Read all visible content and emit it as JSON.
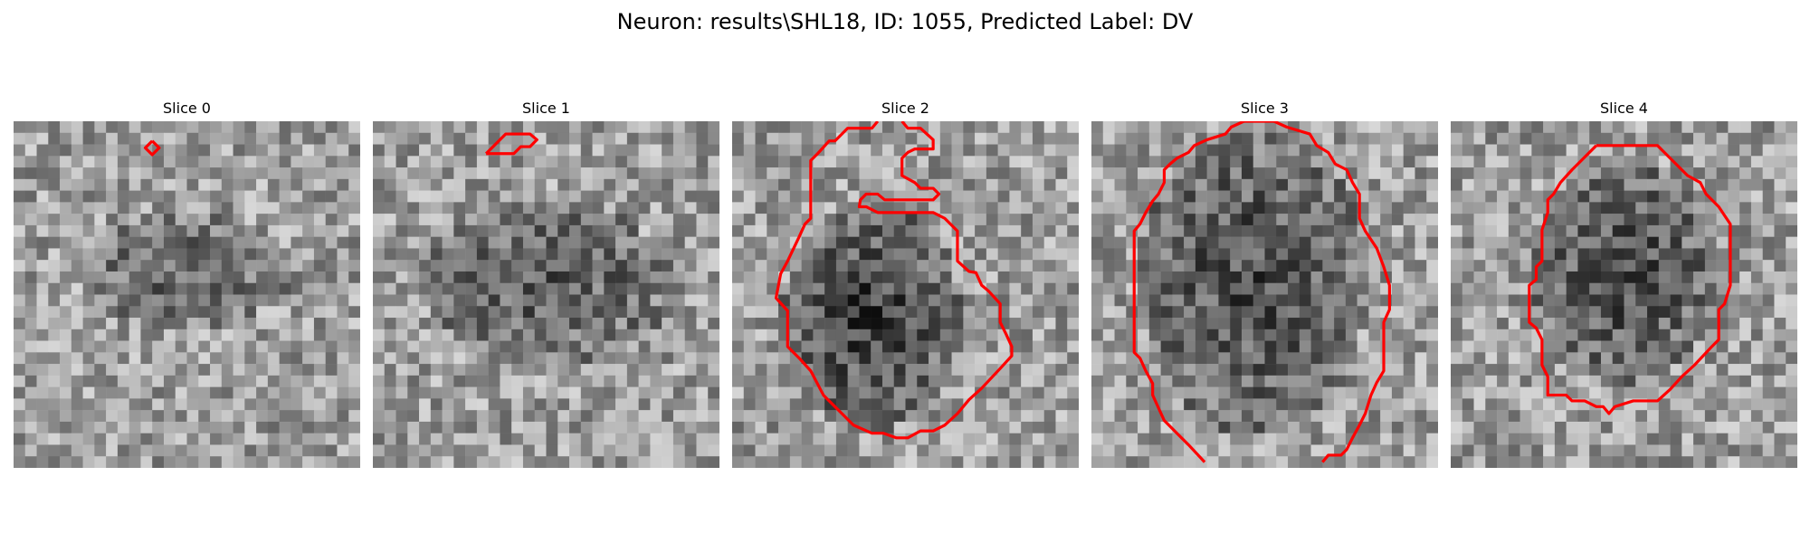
{
  "figure": {
    "title": "Neuron: results\\SHL18, ID: 1055, Predicted Label: DV"
  },
  "panels": [
    {
      "title": "Slice 0"
    },
    {
      "title": "Slice 1"
    },
    {
      "title": "Slice 2"
    },
    {
      "title": "Slice 3"
    },
    {
      "title": "Slice 4"
    }
  ],
  "style": {
    "contour_color": "#ff0000",
    "image_colormap": "grayscale"
  }
}
